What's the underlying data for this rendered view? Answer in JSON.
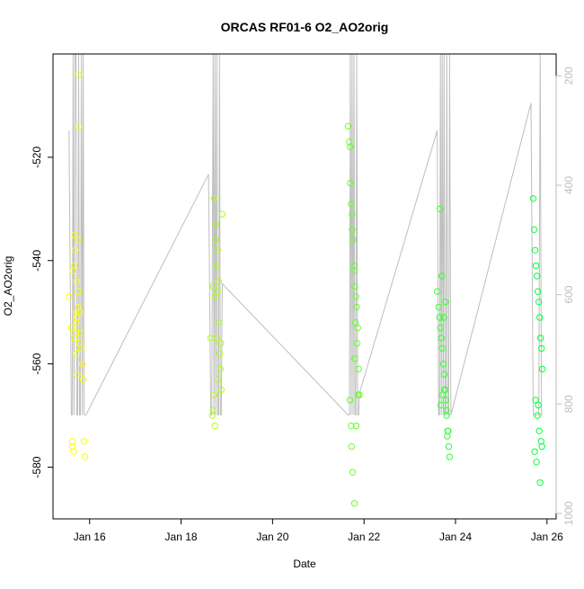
{
  "chart_data": {
    "type": "scatter",
    "title": "ORCAS RF01-6 O2_AO2orig",
    "xlabel": "Date",
    "ylabel": "O2_AO2orig",
    "xlim": [
      15.2,
      26.2
    ],
    "ylim": [
      -590,
      -500
    ],
    "y2lim": [
      1010,
      160
    ],
    "x_ticks": [
      16,
      18,
      20,
      22,
      24,
      26
    ],
    "x_tick_labels": [
      "Jan 16",
      "Jan 18",
      "Jan 20",
      "Jan 22",
      "Jan 24",
      "Jan 26"
    ],
    "y_ticks": [
      -580,
      -560,
      -540,
      -520
    ],
    "y2_ticks": [
      200,
      400,
      600,
      800,
      1000
    ],
    "grid": false,
    "legend": "none",
    "colors": {
      "points_start": "#ffff00",
      "points_end": "#00ff40",
      "line": "#bebebe",
      "axis": "#000000",
      "right_axis": "#bebebe"
    },
    "series": [
      {
        "type": "points",
        "x": [
          15.55,
          15.6,
          15.62,
          15.65,
          15.67,
          15.68,
          15.7,
          15.71,
          15.72,
          15.73,
          15.74,
          15.75,
          15.76,
          15.78,
          15.8,
          15.82,
          15.84,
          15.86,
          15.88,
          15.9,
          15.62,
          15.69,
          15.71,
          15.74,
          15.77,
          15.63,
          15.67,
          15.7,
          15.72,
          15.75,
          18.65,
          18.68,
          18.7,
          18.72,
          18.74,
          18.76,
          18.78,
          18.8,
          18.82,
          18.84,
          18.86,
          18.88,
          18.9,
          18.72,
          18.76,
          18.8,
          18.83,
          18.87,
          18.7,
          18.74,
          18.78,
          18.81,
          21.65,
          21.68,
          21.7,
          21.72,
          21.74,
          21.76,
          21.78,
          21.8,
          21.82,
          21.84,
          21.86,
          21.88,
          21.9,
          21.72,
          21.75,
          21.79,
          21.83,
          21.87,
          21.7,
          21.74,
          21.77,
          21.81,
          21.85,
          21.69,
          21.73,
          21.8,
          23.6,
          23.63,
          23.65,
          23.67,
          23.69,
          23.71,
          23.73,
          23.75,
          23.77,
          23.79,
          23.81,
          23.83,
          23.85,
          23.87,
          23.66,
          23.7,
          23.74,
          23.78,
          23.82,
          23.68,
          23.72,
          23.76,
          23.8,
          23.84,
          25.7,
          25.72,
          25.74,
          25.76,
          25.78,
          25.8,
          25.82,
          25.84,
          25.86,
          25.88,
          25.9,
          25.75,
          25.79,
          25.83,
          25.87,
          25.73,
          25.77,
          25.81,
          25.85,
          25.89
        ],
        "y": [
          -547,
          -553,
          -575,
          -577,
          -541,
          -535,
          -550,
          -552,
          -558,
          -562,
          -536,
          -504,
          -514,
          -550,
          -554,
          -557,
          -560,
          -563,
          -575,
          -578,
          -576,
          -538,
          -544,
          -546,
          -556,
          -542,
          -555,
          -554,
          -551,
          -549,
          -555,
          -570,
          -569,
          -566,
          -572,
          -533,
          -541,
          -546,
          -544,
          -558,
          -561,
          -565,
          -531,
          -528,
          -536,
          -538,
          -552,
          -556,
          -545,
          -547,
          -555,
          -563,
          -514,
          -517,
          -518,
          -529,
          -534,
          -536,
          -541,
          -545,
          -547,
          -549,
          -553,
          -561,
          -566,
          -572,
          -581,
          -587,
          -572,
          -566,
          -525,
          -531,
          -542,
          -552,
          -556,
          -567,
          -576,
          -559,
          -546,
          -549,
          -551,
          -553,
          -555,
          -557,
          -560,
          -562,
          -565,
          -567,
          -570,
          -573,
          -576,
          -578,
          -530,
          -543,
          -551,
          -548,
          -574,
          -568,
          -566,
          -565,
          -569,
          -573,
          -528,
          -534,
          -538,
          -541,
          -543,
          -546,
          -548,
          -551,
          -555,
          -557,
          -561,
          -567,
          -570,
          -573,
          -575,
          -577,
          -579,
          -568,
          -583,
          -576
        ]
      },
      {
        "type": "line",
        "x": [
          15.55,
          15.6,
          15.62,
          15.64,
          15.66,
          15.68,
          15.7,
          15.72,
          15.74,
          15.76,
          15.78,
          15.8,
          15.82,
          15.84,
          15.86,
          15.88,
          15.9,
          15.92,
          18.6,
          18.65,
          18.67,
          18.7,
          18.72,
          18.74,
          18.76,
          18.78,
          18.8,
          18.82,
          18.84,
          18.86,
          18.88,
          18.9,
          21.65,
          21.68,
          21.7,
          21.72,
          21.74,
          21.76,
          21.78,
          21.8,
          21.82,
          21.84,
          21.86,
          21.88,
          21.9,
          23.6,
          23.63,
          23.65,
          23.67,
          23.69,
          23.71,
          23.73,
          23.75,
          23.77,
          23.79,
          23.81,
          23.83,
          23.85,
          23.87,
          23.9,
          25.65,
          25.7,
          25.73,
          25.76,
          25.79,
          25.82,
          25.85,
          25.88,
          25.9
        ],
        "y2": [
          300,
          820,
          820,
          160,
          820,
          160,
          160,
          820,
          820,
          160,
          820,
          820,
          160,
          820,
          160,
          820,
          820,
          820,
          380,
          820,
          820,
          160,
          820,
          160,
          820,
          160,
          820,
          820,
          160,
          820,
          820,
          580,
          820,
          820,
          160,
          820,
          160,
          820,
          160,
          820,
          820,
          160,
          820,
          820,
          780,
          300,
          820,
          820,
          160,
          820,
          160,
          820,
          160,
          820,
          820,
          160,
          820,
          820,
          160,
          820,
          250,
          820,
          820,
          820,
          820,
          820,
          160,
          820,
          820
        ]
      }
    ]
  }
}
